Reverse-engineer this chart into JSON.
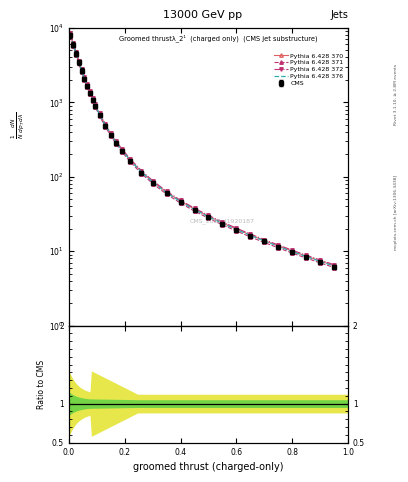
{
  "title_top": "13000 GeV pp",
  "title_right": "Jets",
  "plot_title": "Groomed thrustλ_2¹  (charged only)  (CMS jet substructure)",
  "xlabel": "groomed thrust (charged-only)",
  "ylabel_ratio": "Ratio to CMS",
  "watermark": "CMS_2021_I1920187",
  "right_label_top": "Rivet 3.1.10, ≥ 2.8M events",
  "right_label_bottom": "mcplots.cern.ch [arXiv:1306.3438]",
  "legend_entries": [
    {
      "label": "CMS",
      "color": "black",
      "marker": "s",
      "ls": "none",
      "mfc": "black"
    },
    {
      "label": "Pythia 6.428 370",
      "color": "#e06060",
      "marker": "^",
      "ls": "-",
      "mfc": "none"
    },
    {
      "label": "Pythia 6.428 371",
      "color": "#c03070",
      "marker": "^",
      "ls": "--",
      "mfc": "#c03070"
    },
    {
      "label": "Pythia 6.428 372",
      "color": "#c03070",
      "marker": "v",
      "ls": "-.",
      "mfc": "#c03070"
    },
    {
      "label": "Pythia 6.428 376",
      "color": "#30b0b0",
      "marker": "",
      "ls": "--"
    }
  ],
  "main_xlim": [
    0,
    1
  ],
  "main_ylim": [
    1,
    10000
  ],
  "ratio_ylim": [
    0.5,
    2.0
  ],
  "background_color": "#ffffff",
  "ylabel_lines": [
    "1",
    "mathrd N",
    "mathrd p_T mathrd",
    "mathrd dλ"
  ]
}
